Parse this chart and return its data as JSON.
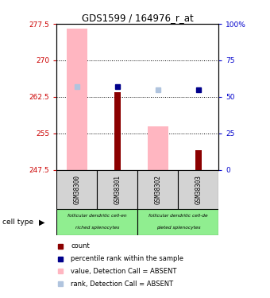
{
  "title": "GDS1599 / 164976_r_at",
  "samples": [
    "GSM38300",
    "GSM38301",
    "GSM38302",
    "GSM38303"
  ],
  "ylim_left": [
    247.5,
    277.5
  ],
  "ylim_right": [
    0,
    100
  ],
  "yticks_left": [
    247.5,
    255,
    262.5,
    270,
    277.5
  ],
  "yticks_right": [
    0,
    25,
    50,
    75,
    100
  ],
  "ytick_labels_left": [
    "247.5",
    "255",
    "262.5",
    "270",
    "277.5"
  ],
  "ytick_labels_right": [
    "0",
    "25",
    "50",
    "75",
    "100%"
  ],
  "pink_bars": [
    276.5,
    null,
    256.5,
    null
  ],
  "red_bars": [
    null,
    263.5,
    null,
    251.5
  ],
  "blue_squares_dark": [
    null,
    57,
    null,
    55
  ],
  "blue_squares_light": [
    57,
    null,
    55,
    null
  ],
  "cell_type_labels": [
    [
      "follicular dendritic cell-en",
      "riched splenocytes"
    ],
    [
      "follicular dendritic cell-de",
      "pleted splenocytes"
    ]
  ],
  "pink_color": "#FFB6C1",
  "red_color": "#8B0000",
  "blue_dark_color": "#00008B",
  "blue_light_color": "#B0C4DE",
  "green_color": "#90EE90",
  "gray_color": "#d3d3d3",
  "left_tick_color": "#cc0000",
  "right_tick_color": "#0000cc"
}
